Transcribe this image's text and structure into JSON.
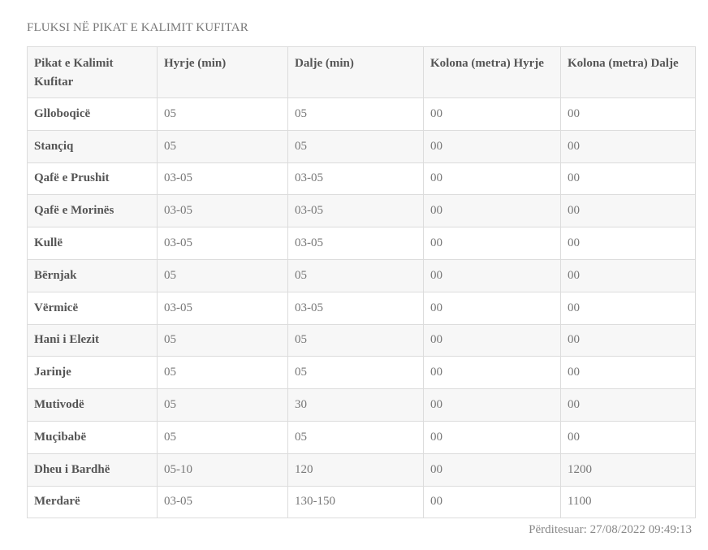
{
  "title": "FLUKSI NË PIKAT E KALIMIT KUFITAR",
  "headers": [
    "Pikat e Kalimit Kufitar",
    "Hyrje (min)",
    "Dalje (min)",
    "Kolona (metra) Hyrje",
    "Kolona (metra) Dalje"
  ],
  "rows": [
    [
      "Glloboqicë",
      "05",
      "05",
      "00",
      "00"
    ],
    [
      "Stançiq",
      "05",
      "05",
      "00",
      "00"
    ],
    [
      "Qafë e Prushit",
      "03-05",
      "03-05",
      "00",
      "00"
    ],
    [
      "Qafë e Morinës",
      "03-05",
      "03-05",
      "00",
      "00"
    ],
    [
      "Kullë",
      "03-05",
      "03-05",
      "00",
      "00"
    ],
    [
      "Bërnjak",
      "05",
      "05",
      "00",
      "00"
    ],
    [
      "Vërmicë",
      "03-05",
      "03-05",
      "00",
      "00"
    ],
    [
      "Hani i Elezit",
      "05",
      "05",
      "00",
      "00"
    ],
    [
      "Jarinje",
      "05",
      "05",
      "00",
      "00"
    ],
    [
      "Mutivodë",
      "05",
      "30",
      "00",
      "00"
    ],
    [
      "Muçibabë",
      "05",
      "05",
      "00",
      "00"
    ],
    [
      "Dheu i Bardhë",
      "05-10",
      "120",
      "00",
      "1200"
    ],
    [
      "Merdarë",
      "03-05",
      "130-150",
      "00",
      "1100"
    ]
  ],
  "updated": "Përditesuar: 27/08/2022 09:49:13"
}
